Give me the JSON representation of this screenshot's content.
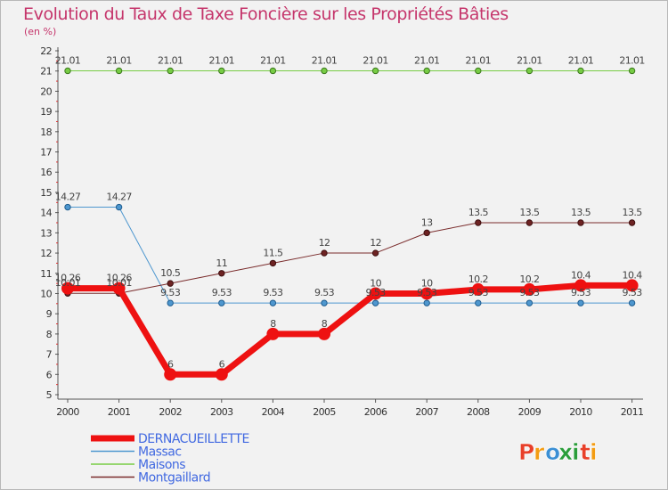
{
  "title": "Evolution du Taux de Taxe Foncière sur les Propriétés Bâties",
  "subtitle": "(en %)",
  "logo": {
    "text": "Proxiti",
    "letters": [
      "P",
      "r",
      "o",
      "x",
      "i",
      "t",
      "i"
    ],
    "colors": [
      "#e8402a",
      "#f39c12",
      "#3b8fd4",
      "#2a9d3a",
      "#2a9d3a",
      "#e8402a",
      "#f39c12"
    ]
  },
  "chart_data": {
    "type": "line",
    "categories": [
      "2000",
      "2001",
      "2002",
      "2003",
      "2004",
      "2005",
      "2006",
      "2007",
      "2008",
      "2009",
      "2010",
      "2011"
    ],
    "ylim": [
      5,
      22
    ],
    "yticks": [
      "5",
      "6",
      "7",
      "8",
      "9",
      "10",
      "11",
      "12",
      "13",
      "14",
      "15",
      "16",
      "17",
      "18",
      "19",
      "20",
      "21",
      "22"
    ],
    "grid": false,
    "legend_position": "bottom-left",
    "series": [
      {
        "name": "Maisons",
        "color": "#77cc44",
        "values": [
          21.01,
          21.01,
          21.01,
          21.01,
          21.01,
          21.01,
          21.01,
          21.01,
          21.01,
          21.01,
          21.01,
          21.01
        ],
        "labels": [
          "21.01",
          "21.01",
          "21.01",
          "21.01",
          "21.01",
          "21.01",
          "21.01",
          "21.01",
          "21.01",
          "21.01",
          "21.01",
          "21.01"
        ]
      },
      {
        "name": "Massac",
        "color": "#4e97cf",
        "values": [
          14.27,
          14.27,
          9.53,
          9.53,
          9.53,
          9.53,
          9.53,
          9.53,
          9.53,
          9.53,
          9.53,
          9.53
        ],
        "labels": [
          "14.27",
          "14.27",
          "9.53",
          "9.53",
          "9.53",
          "9.53",
          "9.53",
          "9.53",
          "9.53",
          "9.53",
          "9.53",
          "9.53"
        ]
      },
      {
        "name": "Montgaillard",
        "color": "#7a2c2c",
        "values": [
          10.01,
          10.01,
          10.5,
          11,
          11.5,
          12,
          12,
          13,
          13.5,
          13.5,
          13.5,
          13.5
        ],
        "labels": [
          "10.01",
          "10.01",
          "10.5",
          "11",
          "11.5",
          "12",
          "12",
          "13",
          "13.5",
          "13.5",
          "13.5",
          "13.5"
        ]
      },
      {
        "name": "DERNACUEILLETTE",
        "color": "#ee1111",
        "values": [
          10.26,
          10.26,
          6,
          6,
          8,
          8,
          10,
          10,
          10.2,
          10.2,
          10.4,
          10.4
        ],
        "labels": [
          "10.26",
          "10.26",
          "6",
          "6",
          "8",
          "8",
          "10",
          "10",
          "10.2",
          "10.2",
          "10.4",
          "10.4"
        ]
      }
    ],
    "legend": [
      {
        "name": "DERNACUEILLETTE",
        "color": "#ee1111",
        "text_color": "#4169e1"
      },
      {
        "name": "Massac",
        "color": "#4e97cf",
        "text_color": "#4169e1"
      },
      {
        "name": "Maisons",
        "color": "#77cc44",
        "text_color": "#4169e1"
      },
      {
        "name": "Montgaillard",
        "color": "#7a2c2c",
        "text_color": "#4169e1"
      }
    ]
  }
}
